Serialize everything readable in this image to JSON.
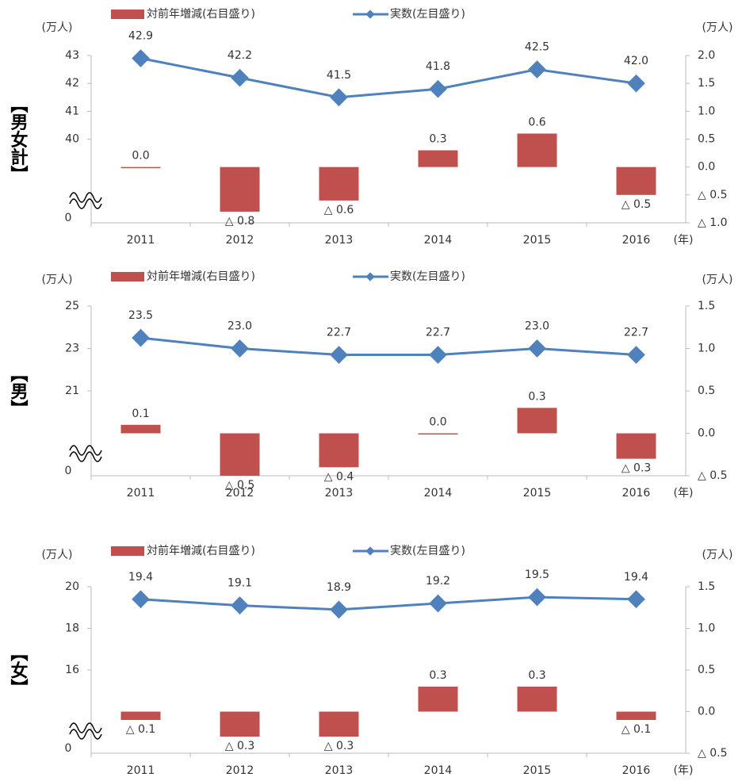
{
  "chart_data": [
    {
      "type": "combo",
      "side_title": "【男女計】",
      "y_unit": "(万人)",
      "y2_unit": "(万人)",
      "x_unit": "(年)",
      "y_break_label": "0",
      "categories": [
        "2011",
        "2012",
        "2013",
        "2014",
        "2015",
        "2016"
      ],
      "ylim": [
        37,
        43
      ],
      "yticks": [
        40,
        41,
        42,
        43
      ],
      "y2lim": [
        -1,
        2
      ],
      "y2ticks": [
        {
          "value": 2,
          "label": "2.0"
        },
        {
          "value": 1.5,
          "label": "1.5"
        },
        {
          "value": 1,
          "label": "1.0"
        },
        {
          "value": 0.5,
          "label": "0.5"
        },
        {
          "value": 0,
          "label": "0.0"
        },
        {
          "value": -0.5,
          "label": "△ 0.5"
        },
        {
          "value": -1,
          "label": "△ 1.0"
        }
      ],
      "grid": false,
      "series": [
        {
          "name": "対前年増減(右目盛り)",
          "type": "bar",
          "axis": "y2",
          "color": "#c0504d",
          "values": [
            0.0,
            -0.8,
            -0.6,
            0.3,
            0.6,
            -0.5
          ],
          "value_labels": [
            "0.0",
            "△ 0.8",
            "△ 0.6",
            "0.3",
            "0.6",
            "△ 0.5"
          ]
        },
        {
          "name": "実数(左目盛り)",
          "type": "line",
          "color": "#4f81bd",
          "values": [
            42.9,
            42.2,
            41.5,
            41.8,
            42.5,
            42.0
          ],
          "value_labels": [
            "42.9",
            "42.2",
            "41.5",
            "41.8",
            "42.5",
            "42.0"
          ]
        }
      ]
    },
    {
      "type": "combo",
      "side_title": "【男】",
      "y_unit": "(万人)",
      "y2_unit": "(万人)",
      "x_unit": "(年)",
      "y_break_label": "0",
      "categories": [
        "2011",
        "2012",
        "2013",
        "2014",
        "2015",
        "2016"
      ],
      "ylim": [
        17,
        25
      ],
      "yticks": [
        21,
        23,
        25
      ],
      "y2lim": [
        -0.5,
        1.5
      ],
      "y2ticks": [
        {
          "value": 1.5,
          "label": "1.5"
        },
        {
          "value": 1,
          "label": "1.0"
        },
        {
          "value": 0.5,
          "label": "0.5"
        },
        {
          "value": 0,
          "label": "0.0"
        },
        {
          "value": -0.5,
          "label": "△ 0.5"
        }
      ],
      "grid": false,
      "series": [
        {
          "name": "対前年増減(右目盛り)",
          "type": "bar",
          "axis": "y2",
          "color": "#c0504d",
          "values": [
            0.1,
            -0.5,
            -0.4,
            0.0,
            0.3,
            -0.3
          ],
          "value_labels": [
            "0.1",
            "△ 0.5",
            "△ 0.4",
            "0.0",
            "0.3",
            "△ 0.3"
          ]
        },
        {
          "name": "実数(左目盛り)",
          "type": "line",
          "color": "#4f81bd",
          "values": [
            23.5,
            23.0,
            22.7,
            22.7,
            23.0,
            22.7
          ],
          "value_labels": [
            "23.5",
            "23.0",
            "22.7",
            "22.7",
            "23.0",
            "22.7"
          ]
        }
      ]
    },
    {
      "type": "combo",
      "side_title": "【女】",
      "y_unit": "(万人)",
      "y2_unit": "(万人)",
      "x_unit": "(年)",
      "y_break_label": "0",
      "categories": [
        "2011",
        "2012",
        "2013",
        "2014",
        "2015",
        "2016"
      ],
      "ylim": [
        12,
        20
      ],
      "yticks": [
        16,
        18,
        20
      ],
      "y2lim": [
        -0.5,
        1.5
      ],
      "y2ticks": [
        {
          "value": 1.5,
          "label": "1.5"
        },
        {
          "value": 1,
          "label": "1.0"
        },
        {
          "value": 0.5,
          "label": "0.5"
        },
        {
          "value": 0,
          "label": "0.0"
        },
        {
          "value": -0.5,
          "label": "△ 0.5"
        }
      ],
      "grid": false,
      "series": [
        {
          "name": "対前年増減(右目盛り)",
          "type": "bar",
          "axis": "y2",
          "color": "#c0504d",
          "values": [
            -0.1,
            -0.3,
            -0.3,
            0.3,
            0.3,
            -0.1
          ],
          "value_labels": [
            "△ 0.1",
            "△ 0.3",
            "△ 0.3",
            "0.3",
            "0.3",
            "△ 0.1"
          ]
        },
        {
          "name": "実数(左目盛り)",
          "type": "line",
          "color": "#4f81bd",
          "values": [
            19.4,
            19.1,
            18.9,
            19.2,
            19.5,
            19.4
          ],
          "value_labels": [
            "19.4",
            "19.1",
            "18.9",
            "19.2",
            "19.5",
            "19.4"
          ]
        }
      ]
    }
  ]
}
